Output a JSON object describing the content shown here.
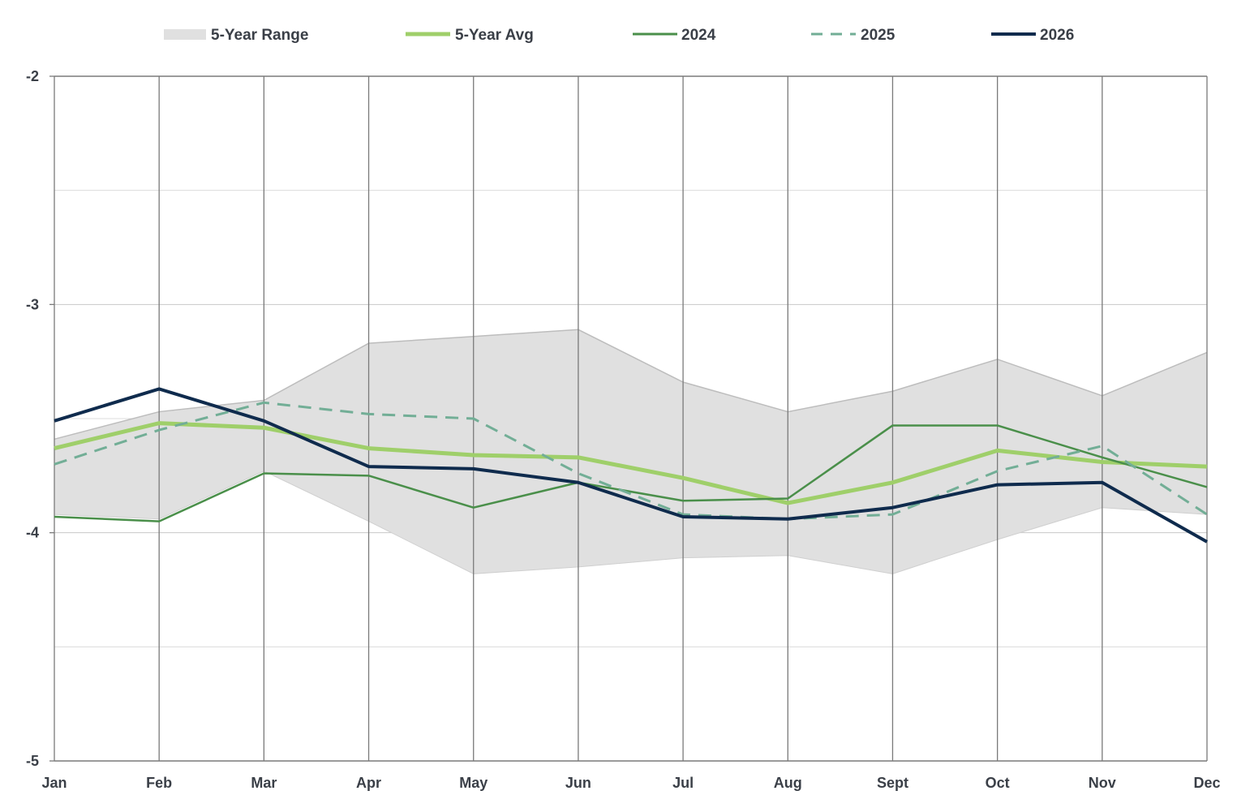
{
  "chart_data": {
    "type": "line",
    "title": "",
    "xlabel": "",
    "ylabel": "",
    "categories": [
      "Jan",
      "Feb",
      "Mar",
      "Apr",
      "May",
      "Jun",
      "Jul",
      "Aug",
      "Sept",
      "Oct",
      "Nov",
      "Dec"
    ],
    "ylim": [
      -5,
      -2
    ],
    "yticks": [
      -2,
      -3,
      -4,
      -5
    ],
    "ytick_labels": [
      "-2",
      "-3",
      "-4",
      "-5"
    ],
    "grid": {
      "vertical": true,
      "horizontal": true
    },
    "legend_position": "top",
    "range": {
      "name": "5-Year Range",
      "color": "#e0e0e0",
      "upper": [
        -3.59,
        -3.47,
        -3.42,
        -3.17,
        -3.14,
        -3.11,
        -3.34,
        -3.47,
        -3.38,
        -3.24,
        -3.4,
        -3.21
      ],
      "lower": [
        -3.92,
        -3.94,
        -3.73,
        -3.95,
        -4.18,
        -4.15,
        -4.11,
        -4.1,
        -4.18,
        -4.03,
        -3.89,
        -3.92
      ]
    },
    "series": [
      {
        "name": "5-Year Avg",
        "color": "#9fcf6a",
        "style": "solid",
        "width": 5,
        "values": [
          -3.63,
          -3.52,
          -3.54,
          -3.63,
          -3.66,
          -3.67,
          -3.76,
          -3.87,
          -3.78,
          -3.64,
          -3.69,
          -3.71
        ]
      },
      {
        "name": "2024",
        "color": "#4a8f4a",
        "style": "solid",
        "width": 2.5,
        "values": [
          -3.93,
          -3.95,
          -3.74,
          -3.75,
          -3.89,
          -3.78,
          -3.86,
          -3.85,
          -3.53,
          -3.53,
          -3.67,
          -3.8
        ]
      },
      {
        "name": "2025",
        "color": "#72ae96",
        "style": "dashed",
        "width": 3,
        "values": [
          -3.7,
          -3.55,
          -3.43,
          -3.48,
          -3.5,
          -3.74,
          -3.92,
          -3.94,
          -3.92,
          -3.73,
          -3.62,
          -3.92
        ]
      },
      {
        "name": "2026",
        "color": "#0f2b4d",
        "style": "solid",
        "width": 4,
        "values": [
          -3.51,
          -3.37,
          -3.51,
          -3.71,
          -3.72,
          -3.78,
          -3.93,
          -3.94,
          -3.89,
          -3.79,
          -3.78,
          -4.04
        ]
      }
    ]
  }
}
